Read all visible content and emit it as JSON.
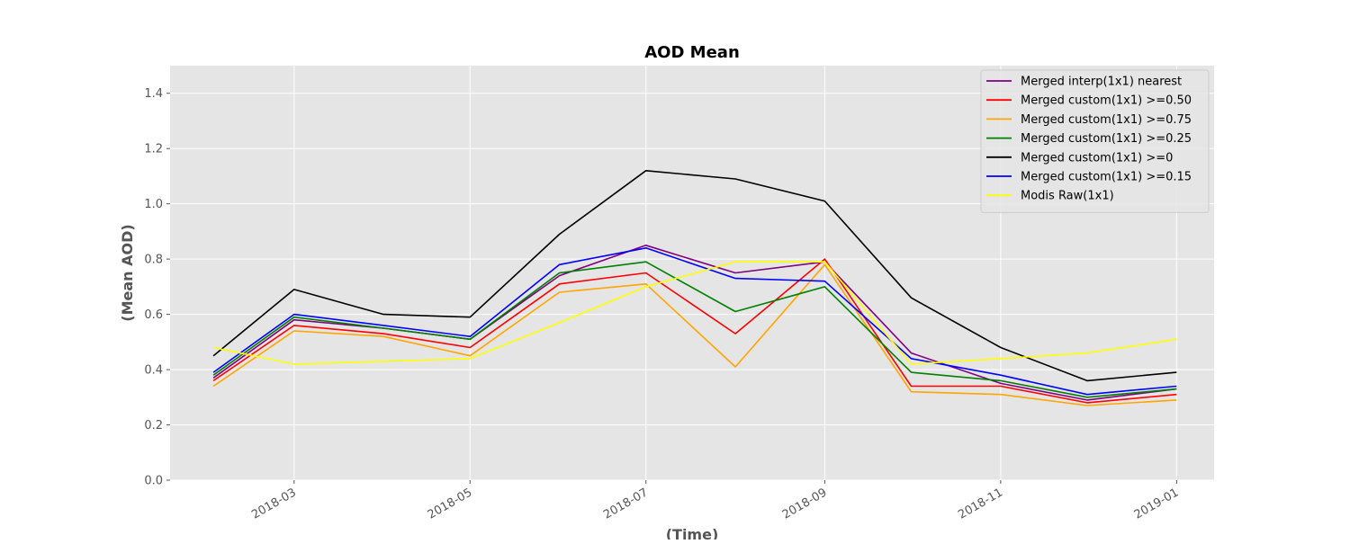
{
  "chart_data": {
    "type": "line",
    "title": "AOD Mean",
    "xlabel": "(Time)",
    "ylabel": "(Mean AOD)",
    "ylim": [
      0,
      1.5
    ],
    "yticks": [
      "0.0",
      "0.2",
      "0.4",
      "0.6",
      "0.8",
      "1.0",
      "1.2",
      "1.4"
    ],
    "xticks": [
      "2018-03",
      "2018-05",
      "2018-07",
      "2018-09",
      "2018-11",
      "2019-01"
    ],
    "x": [
      "2018-02-01",
      "2018-03-01",
      "2018-04-01",
      "2018-05-01",
      "2018-06-01",
      "2018-07-01",
      "2018-08-01",
      "2018-09-01",
      "2018-10-01",
      "2018-11-01",
      "2018-12-01",
      "2019-01-01"
    ],
    "series": [
      {
        "name": "Merged interp(1x1) nearest",
        "color": "#800080",
        "values": [
          0.37,
          0.58,
          0.55,
          0.51,
          0.74,
          0.85,
          0.75,
          0.79,
          0.46,
          0.35,
          0.29,
          0.33
        ]
      },
      {
        "name": "Merged custom(1x1) >=0.50",
        "color": "#ff0000",
        "values": [
          0.36,
          0.56,
          0.53,
          0.48,
          0.71,
          0.75,
          0.53,
          0.8,
          0.34,
          0.34,
          0.28,
          0.31
        ]
      },
      {
        "name": "Merged custom(1x1) >=0.75",
        "color": "#ffa500",
        "values": [
          0.34,
          0.54,
          0.52,
          0.45,
          0.68,
          0.71,
          0.41,
          0.78,
          0.32,
          0.31,
          0.27,
          0.29
        ]
      },
      {
        "name": "Merged custom(1x1) >=0.25",
        "color": "#008000",
        "values": [
          0.38,
          0.59,
          0.55,
          0.51,
          0.75,
          0.79,
          0.61,
          0.7,
          0.39,
          0.36,
          0.3,
          0.33
        ]
      },
      {
        "name": "Merged custom(1x1) >=0",
        "color": "#000000",
        "values": [
          0.45,
          0.69,
          0.6,
          0.59,
          0.89,
          1.12,
          1.09,
          1.01,
          0.66,
          0.48,
          0.36,
          0.39
        ]
      },
      {
        "name": "Merged custom(1x1) >=0.15",
        "color": "#0000ff",
        "values": [
          0.39,
          0.6,
          0.56,
          0.52,
          0.78,
          0.84,
          0.73,
          0.72,
          0.44,
          0.38,
          0.31,
          0.34
        ]
      },
      {
        "name": "Modis Raw(1x1)",
        "color": "#ffff00",
        "values": [
          0.48,
          0.42,
          0.43,
          0.44,
          0.57,
          0.7,
          0.79,
          0.79,
          0.42,
          0.44,
          0.46,
          0.51
        ]
      }
    ],
    "grid": true,
    "legend_position": "top-right",
    "background": "#e5e5e5",
    "grid_color": "#ffffff"
  }
}
